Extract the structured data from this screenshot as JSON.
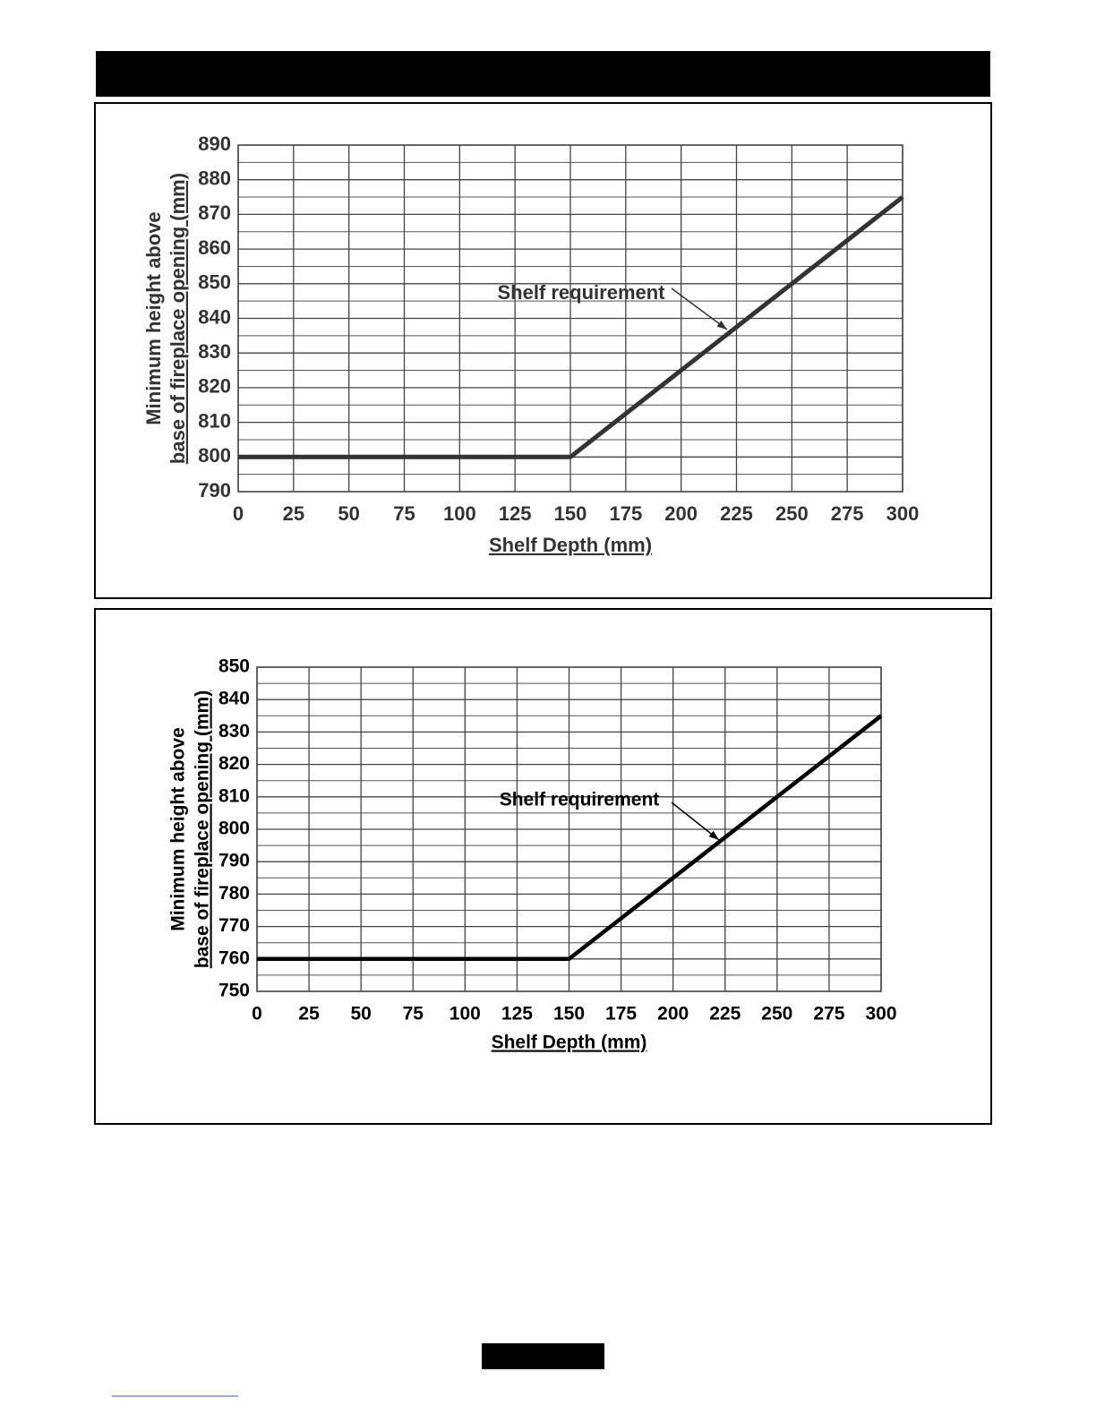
{
  "chart_data": [
    {
      "type": "line",
      "x_label": "Shelf Depth (mm)",
      "y_label": [
        "Minimum height above",
        "base of fireplace opening (mm)"
      ],
      "annotation": "Shelf requirement",
      "x": [
        0,
        150,
        300
      ],
      "values": [
        800,
        800,
        875
      ],
      "color": "#333333",
      "xlim": [
        0,
        300
      ],
      "xticks": [
        0,
        25,
        50,
        75,
        100,
        125,
        150,
        175,
        200,
        225,
        250,
        275,
        300
      ],
      "ylim": [
        790,
        890
      ],
      "yticks": [
        790,
        800,
        810,
        820,
        830,
        840,
        850,
        860,
        870,
        880,
        890
      ],
      "yminorticks": [
        795,
        805,
        815,
        825,
        835,
        845,
        855,
        865,
        875,
        885
      ],
      "grid": true
    },
    {
      "type": "line",
      "x_label": "Shelf Depth (mm)",
      "y_label": [
        "Minimum height above",
        "base of fireplace opening (mm)"
      ],
      "annotation": "Shelf requirement",
      "x": [
        0,
        150,
        300
      ],
      "values": [
        760,
        760,
        835
      ],
      "color": "#000000",
      "xlim": [
        0,
        300
      ],
      "xticks": [
        0,
        25,
        50,
        75,
        100,
        125,
        150,
        175,
        200,
        225,
        250,
        275,
        300
      ],
      "ylim": [
        750,
        850
      ],
      "yticks": [
        750,
        760,
        770,
        780,
        790,
        800,
        810,
        820,
        830,
        840,
        850
      ],
      "yminorticks": [
        755,
        765,
        775,
        785,
        795,
        805,
        815,
        825,
        835,
        845
      ],
      "grid": true
    }
  ]
}
